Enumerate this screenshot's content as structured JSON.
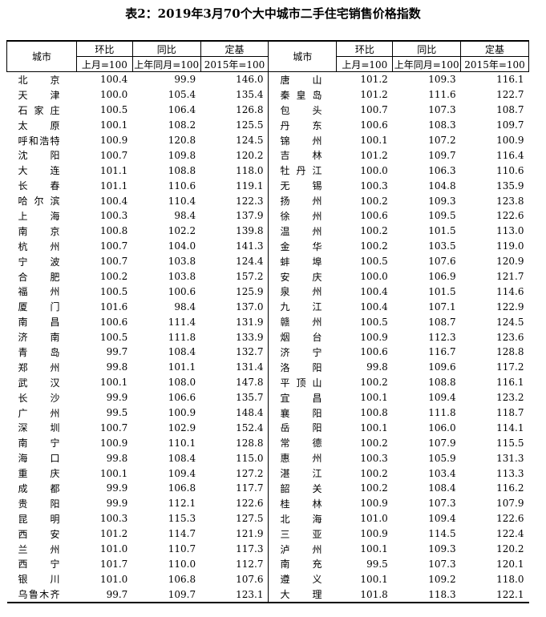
{
  "header": {
    "title": "表2：2019年3月70个大中城市二手住宅销售价格指数"
  },
  "table": {
    "columns": {
      "city": "城市",
      "mom": "环比",
      "yoy": "同比",
      "base": "定基",
      "mom_sub": "上月=100",
      "yoy_sub": "上年同月=100",
      "base_sub": "2015年=100"
    },
    "left": [
      [
        "北京",
        "100.4",
        "99.9",
        "146.0"
      ],
      [
        "天津",
        "100.0",
        "105.4",
        "135.4"
      ],
      [
        "石家庄",
        "100.5",
        "106.4",
        "126.8"
      ],
      [
        "太原",
        "100.1",
        "108.2",
        "125.5"
      ],
      [
        "呼和浩特",
        "100.9",
        "120.8",
        "124.5"
      ],
      [
        "沈阳",
        "100.7",
        "109.8",
        "120.2"
      ],
      [
        "大连",
        "101.1",
        "108.8",
        "118.0"
      ],
      [
        "长春",
        "101.1",
        "110.6",
        "119.1"
      ],
      [
        "哈尔滨",
        "100.4",
        "110.4",
        "122.3"
      ],
      [
        "上海",
        "100.3",
        "98.4",
        "137.9"
      ],
      [
        "南京",
        "100.8",
        "102.2",
        "139.8"
      ],
      [
        "杭州",
        "100.7",
        "104.0",
        "141.3"
      ],
      [
        "宁波",
        "100.7",
        "103.8",
        "124.4"
      ],
      [
        "合肥",
        "100.2",
        "103.8",
        "157.2"
      ],
      [
        "福州",
        "100.5",
        "100.6",
        "125.9"
      ],
      [
        "厦门",
        "101.6",
        "98.4",
        "137.0"
      ],
      [
        "南昌",
        "100.6",
        "111.4",
        "131.9"
      ],
      [
        "济南",
        "100.5",
        "111.8",
        "133.9"
      ],
      [
        "青岛",
        "99.7",
        "108.4",
        "132.7"
      ],
      [
        "郑州",
        "99.8",
        "101.1",
        "131.4"
      ],
      [
        "武汉",
        "100.1",
        "108.0",
        "147.8"
      ],
      [
        "长沙",
        "99.9",
        "106.6",
        "135.7"
      ],
      [
        "广州",
        "99.5",
        "100.9",
        "148.4"
      ],
      [
        "深圳",
        "100.7",
        "102.9",
        "152.4"
      ],
      [
        "南宁",
        "100.9",
        "110.1",
        "128.8"
      ],
      [
        "海口",
        "99.8",
        "108.4",
        "115.0"
      ],
      [
        "重庆",
        "100.1",
        "109.4",
        "127.2"
      ],
      [
        "成都",
        "99.9",
        "106.8",
        "117.7"
      ],
      [
        "贵阳",
        "99.9",
        "112.1",
        "122.6"
      ],
      [
        "昆明",
        "100.3",
        "115.3",
        "127.5"
      ],
      [
        "西安",
        "101.2",
        "114.7",
        "121.9"
      ],
      [
        "兰州",
        "101.0",
        "110.7",
        "117.3"
      ],
      [
        "西宁",
        "101.7",
        "110.0",
        "112.7"
      ],
      [
        "银川",
        "101.0",
        "106.8",
        "107.6"
      ],
      [
        "乌鲁木齐",
        "99.7",
        "109.7",
        "123.1"
      ]
    ],
    "right": [
      [
        "唐山",
        "101.2",
        "109.3",
        "116.1"
      ],
      [
        "秦皇岛",
        "101.2",
        "111.6",
        "122.7"
      ],
      [
        "包头",
        "100.7",
        "107.3",
        "108.7"
      ],
      [
        "丹东",
        "100.6",
        "108.3",
        "109.7"
      ],
      [
        "锦州",
        "100.1",
        "107.2",
        "100.9"
      ],
      [
        "吉林",
        "101.2",
        "109.7",
        "116.4"
      ],
      [
        "牡丹江",
        "100.0",
        "106.3",
        "110.6"
      ],
      [
        "无锡",
        "100.3",
        "104.8",
        "135.9"
      ],
      [
        "扬州",
        "100.2",
        "109.3",
        "123.8"
      ],
      [
        "徐州",
        "100.6",
        "109.5",
        "122.6"
      ],
      [
        "温州",
        "100.2",
        "101.5",
        "113.0"
      ],
      [
        "金华",
        "100.2",
        "103.5",
        "119.0"
      ],
      [
        "蚌埠",
        "100.5",
        "107.6",
        "120.9"
      ],
      [
        "安庆",
        "100.0",
        "106.9",
        "121.7"
      ],
      [
        "泉州",
        "100.4",
        "101.5",
        "114.6"
      ],
      [
        "九江",
        "100.4",
        "107.1",
        "122.9"
      ],
      [
        "赣州",
        "100.5",
        "108.7",
        "124.5"
      ],
      [
        "烟台",
        "100.9",
        "112.3",
        "123.6"
      ],
      [
        "济宁",
        "100.6",
        "116.7",
        "128.8"
      ],
      [
        "洛阳",
        "99.8",
        "109.6",
        "117.2"
      ],
      [
        "平顶山",
        "100.2",
        "108.8",
        "116.1"
      ],
      [
        "宜昌",
        "100.1",
        "109.4",
        "123.2"
      ],
      [
        "襄阳",
        "100.8",
        "111.8",
        "118.7"
      ],
      [
        "岳阳",
        "100.1",
        "106.0",
        "114.1"
      ],
      [
        "常德",
        "100.2",
        "107.9",
        "115.5"
      ],
      [
        "惠州",
        "100.3",
        "105.9",
        "131.3"
      ],
      [
        "湛江",
        "100.2",
        "103.4",
        "113.3"
      ],
      [
        "韶关",
        "100.2",
        "108.4",
        "116.2"
      ],
      [
        "桂林",
        "100.9",
        "107.3",
        "107.9"
      ],
      [
        "北海",
        "101.0",
        "109.4",
        "122.6"
      ],
      [
        "三亚",
        "100.9",
        "114.5",
        "122.4"
      ],
      [
        "泸州",
        "100.1",
        "109.3",
        "120.2"
      ],
      [
        "南充",
        "99.5",
        "107.3",
        "120.1"
      ],
      [
        "遵义",
        "100.1",
        "109.2",
        "118.0"
      ],
      [
        "大理",
        "101.8",
        "118.3",
        "122.1"
      ]
    ]
  }
}
